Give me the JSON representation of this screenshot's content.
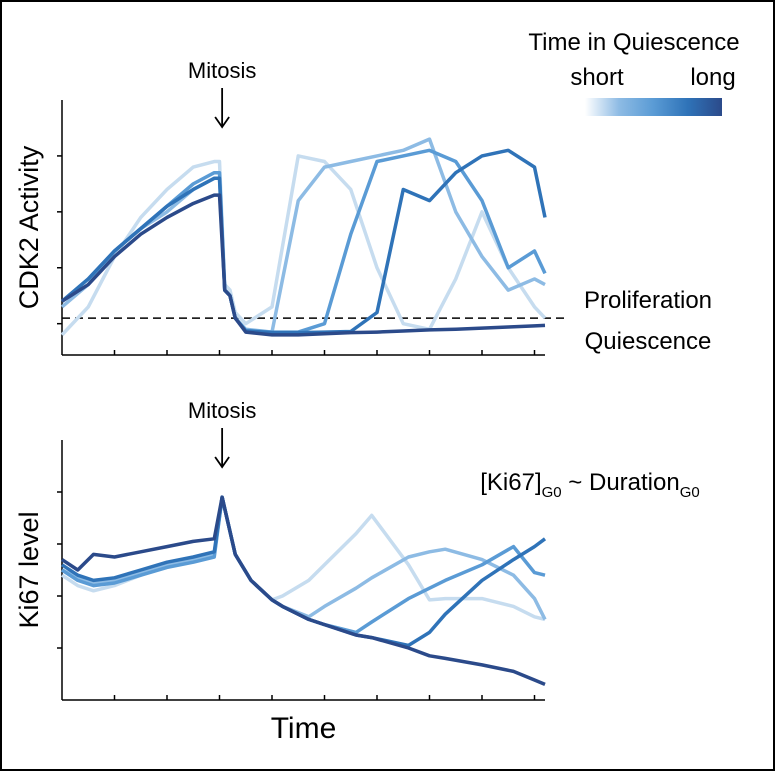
{
  "chart_data": [
    {
      "type": "line",
      "ylabel": "CDK2 Activity",
      "x": [
        0,
        0.5,
        1,
        1.5,
        2,
        2.5,
        2.9,
        3.0,
        3.1,
        3.2,
        3.3,
        3.5,
        4,
        4.5,
        5,
        5.5,
        6,
        6.5,
        7,
        7.5,
        8,
        8.5,
        9,
        9.2
      ],
      "xlim": [
        0,
        9.2
      ],
      "xticks": [
        1,
        2,
        3,
        4,
        5,
        6,
        7,
        8,
        9
      ],
      "ylim": [
        0.44,
        5.0
      ],
      "yticks": [
        1,
        2,
        3,
        4
      ],
      "series": [
        {
          "color": "#c6dcef",
          "values": [
            0.8,
            1.3,
            2.2,
            2.9,
            3.4,
            3.8,
            3.9,
            3.9,
            1.7,
            1.6,
            1.2,
            1.0,
            1.3,
            4.0,
            3.9,
            3.4,
            2.0,
            1.0,
            0.9,
            1.8,
            3.0,
            2.0,
            1.3,
            1.1
          ]
        },
        {
          "color": "#8dbbe4",
          "values": [
            1.3,
            1.7,
            2.3,
            2.7,
            3.0,
            3.4,
            3.6,
            3.6,
            1.6,
            1.5,
            1.1,
            0.9,
            0.85,
            3.2,
            3.8,
            3.9,
            4.0,
            4.1,
            4.3,
            3.0,
            2.2,
            1.6,
            1.8,
            1.7
          ]
        },
        {
          "color": "#5a9bd5",
          "values": [
            1.4,
            1.8,
            2.3,
            2.7,
            3.1,
            3.5,
            3.7,
            3.7,
            1.6,
            1.5,
            1.1,
            0.88,
            0.85,
            0.85,
            1.0,
            2.6,
            3.9,
            4.0,
            4.1,
            3.9,
            3.2,
            2.0,
            2.3,
            1.9
          ]
        },
        {
          "color": "#2f73b8",
          "values": [
            1.4,
            1.8,
            2.3,
            2.7,
            3.1,
            3.4,
            3.6,
            3.6,
            1.6,
            1.5,
            1.1,
            0.87,
            0.84,
            0.84,
            0.85,
            0.86,
            1.2,
            3.4,
            3.2,
            3.7,
            4.0,
            4.1,
            3.8,
            2.9
          ]
        },
        {
          "color": "#2b4a8a",
          "values": [
            1.4,
            1.7,
            2.2,
            2.6,
            2.9,
            3.15,
            3.3,
            3.3,
            1.6,
            1.5,
            1.1,
            0.85,
            0.8,
            0.8,
            0.82,
            0.84,
            0.85,
            0.87,
            0.89,
            0.9,
            0.92,
            0.94,
            0.96,
            0.97
          ]
        }
      ],
      "annotation": {
        "text": "Mitosis",
        "x": 3.05
      },
      "threshold": {
        "value": 1.1,
        "upper_label": "Proliferation",
        "lower_label": "Quiescence"
      },
      "colorbar": {
        "title": "Time in Quiescence",
        "low_label": "short",
        "high_label": "long"
      }
    },
    {
      "type": "line",
      "ylabel": "Ki67 level",
      "xlabel": "Time",
      "x": [
        0,
        0.3,
        0.6,
        1,
        1.5,
        2,
        2.5,
        2.9,
        3.05,
        3.3,
        3.6,
        4,
        4.2,
        4.7,
        5,
        5.6,
        5.9,
        6.6,
        7,
        7.3,
        8,
        8.6,
        9,
        9.2
      ],
      "xlim": [
        0,
        9.2
      ],
      "xticks": [
        1,
        2,
        3,
        4,
        5,
        6,
        7,
        8,
        9
      ],
      "ylim": [
        0,
        10
      ],
      "yticks": [
        2,
        4,
        6,
        8
      ],
      "series": [
        {
          "color": "#c6dcef",
          "values": [
            4.8,
            4.4,
            4.2,
            4.4,
            4.8,
            5.2,
            5.4,
            5.6,
            7.8,
            5.6,
            4.6,
            3.85,
            4.0,
            4.6,
            5.2,
            6.4,
            7.1,
            5.2,
            3.85,
            3.9,
            3.9,
            3.6,
            3.2,
            3.1
          ]
        },
        {
          "color": "#8dbbe4",
          "values": [
            5.0,
            4.7,
            4.5,
            4.6,
            4.9,
            5.2,
            5.4,
            5.6,
            7.8,
            5.6,
            4.6,
            3.85,
            3.6,
            3.2,
            3.6,
            4.3,
            4.7,
            5.5,
            5.7,
            5.8,
            5.4,
            4.8,
            3.9,
            3.1
          ]
        },
        {
          "color": "#5a9bd5",
          "values": [
            5.0,
            4.6,
            4.4,
            4.5,
            4.8,
            5.1,
            5.3,
            5.5,
            7.8,
            5.6,
            4.6,
            3.85,
            3.6,
            3.1,
            2.9,
            2.6,
            3.0,
            3.9,
            4.3,
            4.6,
            5.2,
            5.9,
            4.9,
            4.8
          ]
        },
        {
          "color": "#2f73b8",
          "values": [
            5.2,
            4.8,
            4.6,
            4.7,
            5.0,
            5.3,
            5.5,
            5.7,
            7.8,
            5.6,
            4.6,
            3.85,
            3.6,
            3.1,
            2.9,
            2.5,
            2.4,
            2.1,
            2.6,
            3.3,
            4.6,
            5.4,
            5.9,
            6.2
          ]
        },
        {
          "color": "#2b4a8a",
          "values": [
            5.4,
            5.0,
            5.6,
            5.5,
            5.7,
            5.9,
            6.1,
            6.2,
            7.8,
            5.6,
            4.6,
            3.85,
            3.6,
            3.1,
            2.9,
            2.5,
            2.4,
            2.0,
            1.7,
            1.6,
            1.35,
            1.1,
            0.77,
            0.6
          ]
        }
      ],
      "annotation": {
        "text": "Mitosis",
        "x": 3.05
      },
      "formula": [
        "[Ki67]",
        "G0",
        " ~ Duration",
        "G0"
      ]
    }
  ]
}
